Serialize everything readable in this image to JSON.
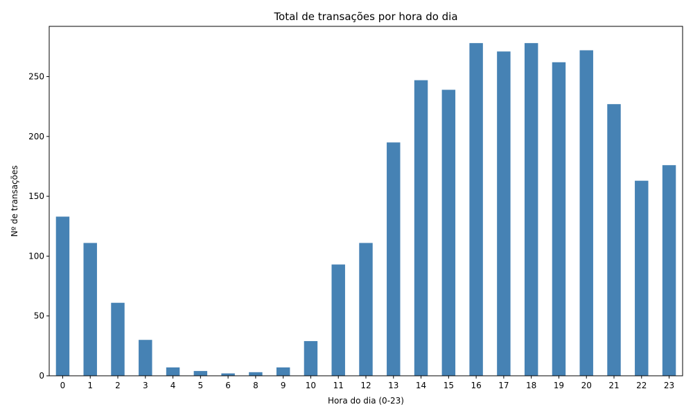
{
  "chart_data": {
    "type": "bar",
    "title": "Total de transações por hora do dia",
    "xlabel": "Hora do dia (0-23)",
    "ylabel": "Nº de transações",
    "categories": [
      "0",
      "1",
      "2",
      "3",
      "4",
      "5",
      "6",
      "8",
      "9",
      "10",
      "11",
      "12",
      "13",
      "14",
      "15",
      "16",
      "17",
      "18",
      "19",
      "20",
      "21",
      "22",
      "23"
    ],
    "values": [
      133,
      111,
      61,
      30,
      7,
      4,
      2,
      3,
      7,
      29,
      93,
      111,
      195,
      247,
      239,
      278,
      271,
      278,
      262,
      272,
      227,
      163,
      176
    ],
    "ylim": [
      0,
      292
    ],
    "yticks": [
      0,
      50,
      100,
      150,
      200,
      250
    ],
    "bar_color": "#4682b4",
    "grid": false,
    "legend": "none"
  }
}
